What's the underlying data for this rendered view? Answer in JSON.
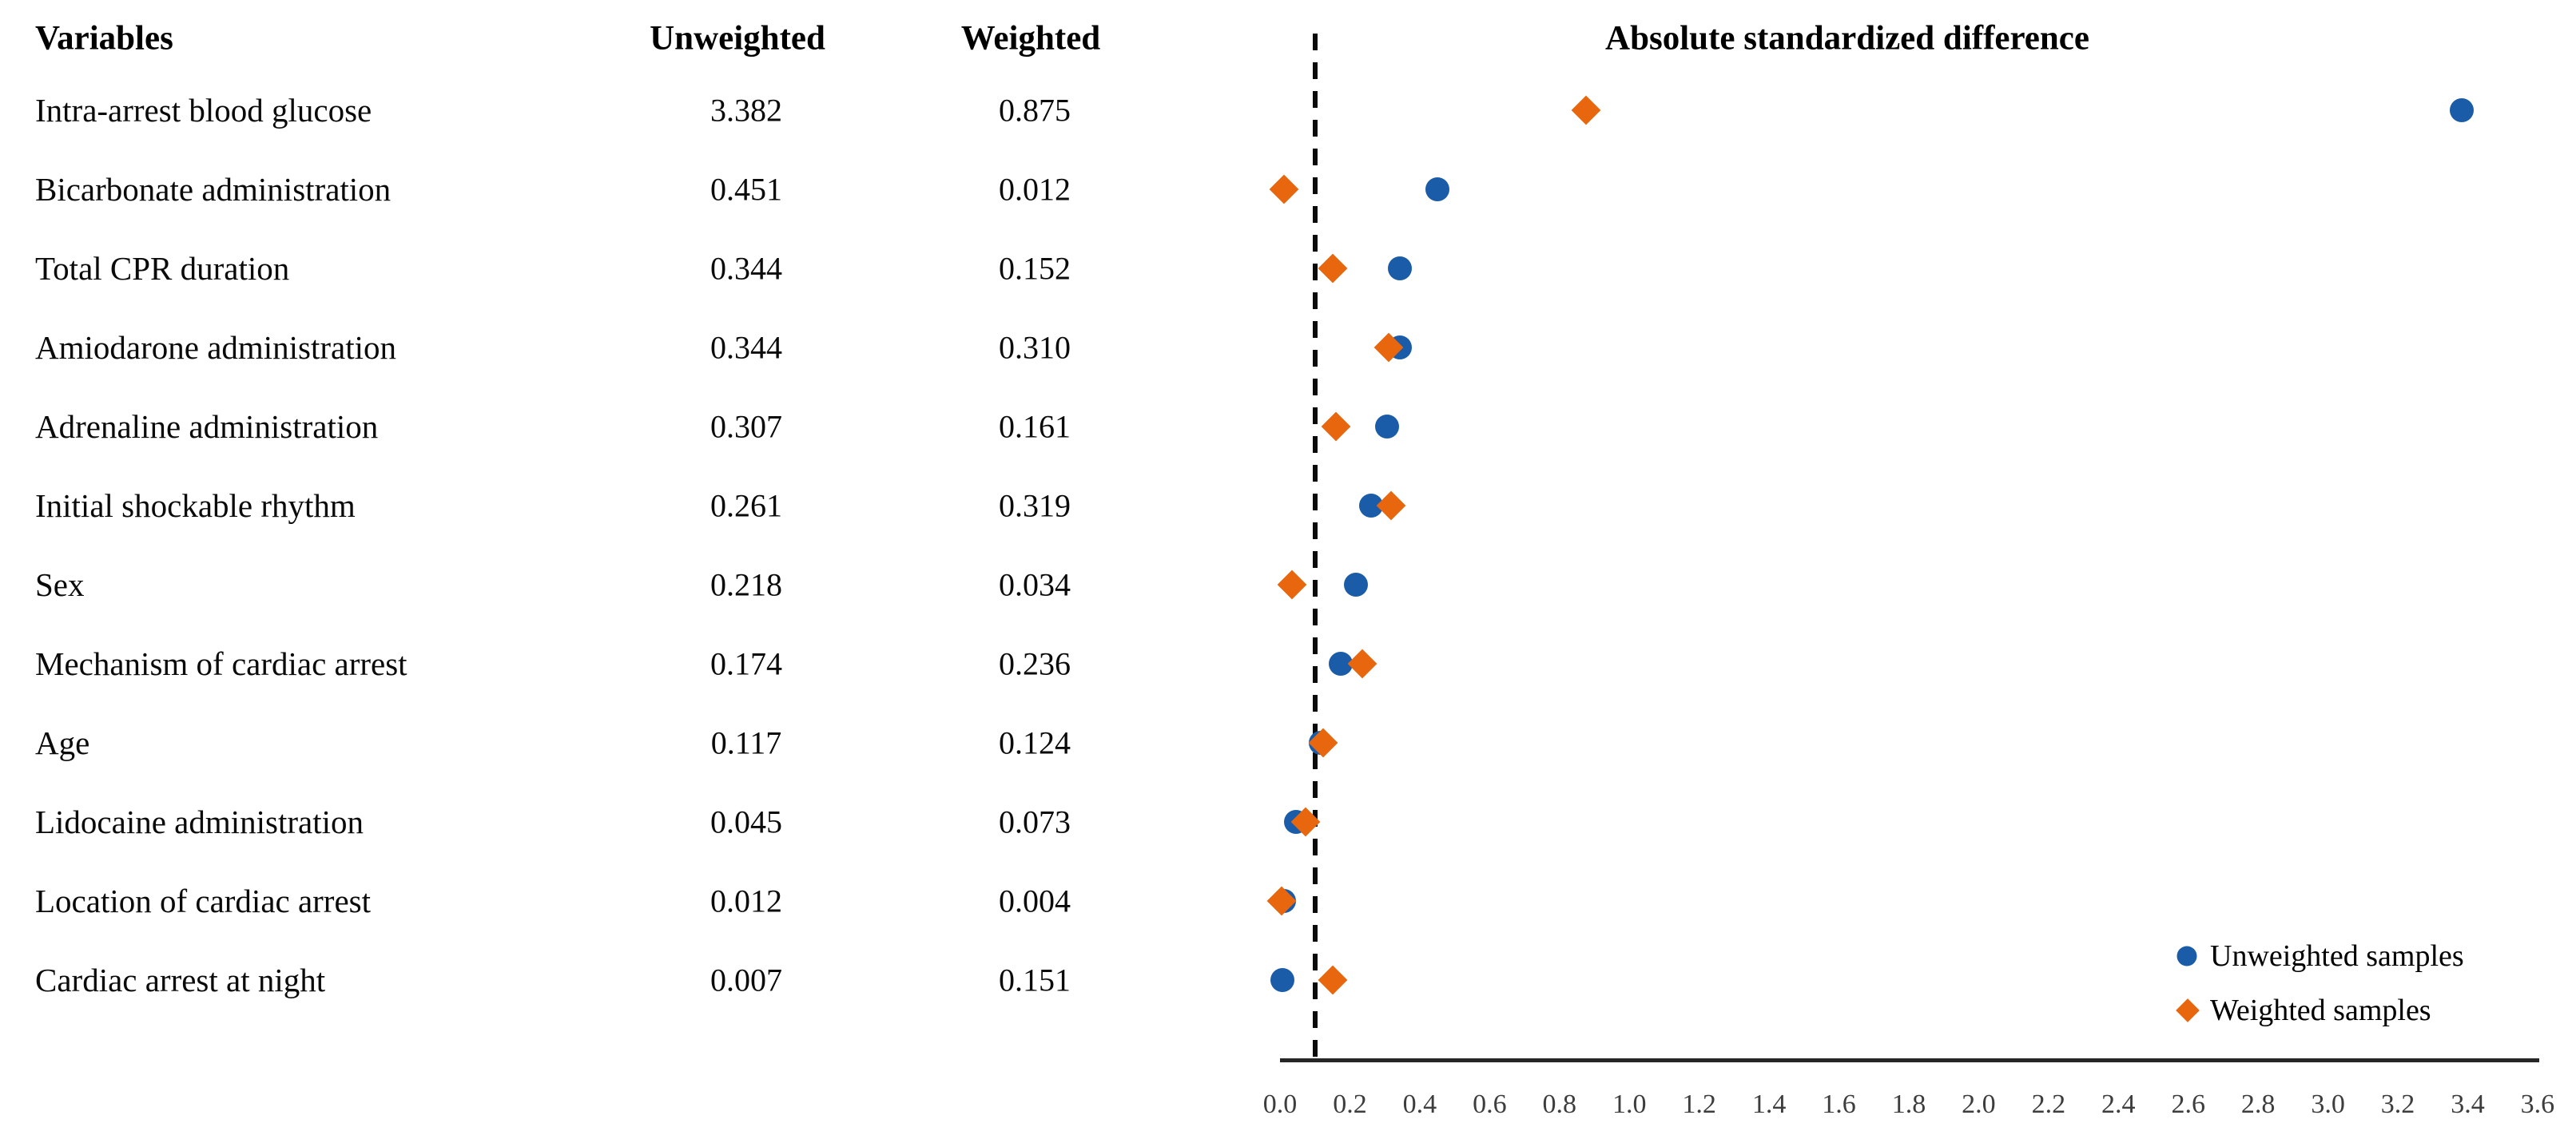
{
  "table": {
    "headers": {
      "variable": "Variables",
      "unweighted": "Unweighted",
      "weighted": "Weighted"
    },
    "rows": [
      {
        "variable": "Intra-arrest blood glucose",
        "unweighted": "3.382",
        "weighted": "0.875"
      },
      {
        "variable": "Bicarbonate administration",
        "unweighted": "0.451",
        "weighted": "0.012"
      },
      {
        "variable": "Total CPR duration",
        "unweighted": "0.344",
        "weighted": "0.152"
      },
      {
        "variable": "Amiodarone administration",
        "unweighted": "0.344",
        "weighted": "0.310"
      },
      {
        "variable": "Adrenaline administration",
        "unweighted": "0.307",
        "weighted": "0.161"
      },
      {
        "variable": "Initial shockable rhythm",
        "unweighted": "0.261",
        "weighted": "0.319"
      },
      {
        "variable": "Sex",
        "unweighted": "0.218",
        "weighted": "0.034"
      },
      {
        "variable": "Mechanism of cardiac arrest",
        "unweighted": "0.174",
        "weighted": "0.236"
      },
      {
        "variable": "Age",
        "unweighted": "0.117",
        "weighted": "0.124"
      },
      {
        "variable": "Lidocaine administration",
        "unweighted": "0.045",
        "weighted": "0.073"
      },
      {
        "variable": "Location of cardiac arrest",
        "unweighted": "0.012",
        "weighted": "0.004"
      },
      {
        "variable": "Cardiac arrest at night",
        "unweighted": "0.007",
        "weighted": "0.151"
      }
    ]
  },
  "chart_data": {
    "type": "scatter",
    "title": "Absolute standardized difference",
    "xlabel": "",
    "ylabel": "",
    "xlim": [
      0.0,
      3.6
    ],
    "x_ticks": [
      "0.0",
      "0.2",
      "0.4",
      "0.6",
      "0.8",
      "1.0",
      "1.2",
      "1.4",
      "1.6",
      "1.8",
      "2.0",
      "2.2",
      "2.4",
      "2.6",
      "2.8",
      "3.0",
      "3.2",
      "3.4",
      "3.6"
    ],
    "grid": false,
    "reference_line_x": 0.1,
    "reference_line_style": "dashed",
    "legend_position": "bottom-right",
    "categories": [
      "Intra-arrest blood glucose",
      "Bicarbonate administration",
      "Total CPR duration",
      "Amiodarone administration",
      "Adrenaline administration",
      "Initial shockable rhythm",
      "Sex",
      "Mechanism of cardiac arrest",
      "Age",
      "Lidocaine administration",
      "Location of cardiac arrest",
      "Cardiac arrest at night"
    ],
    "series": [
      {
        "name": "Unweighted samples",
        "marker": "circle",
        "color": "#1B5CA8",
        "values": [
          3.382,
          0.451,
          0.344,
          0.344,
          0.307,
          0.261,
          0.218,
          0.174,
          0.117,
          0.045,
          0.012,
          0.007
        ]
      },
      {
        "name": "Weighted samples",
        "marker": "diamond",
        "color": "#E8660D",
        "values": [
          0.875,
          0.012,
          0.152,
          0.31,
          0.161,
          0.319,
          0.034,
          0.236,
          0.124,
          0.073,
          0.004,
          0.151
        ]
      }
    ],
    "axis_color": "#262626",
    "tick_color": "#3d3d3d"
  }
}
